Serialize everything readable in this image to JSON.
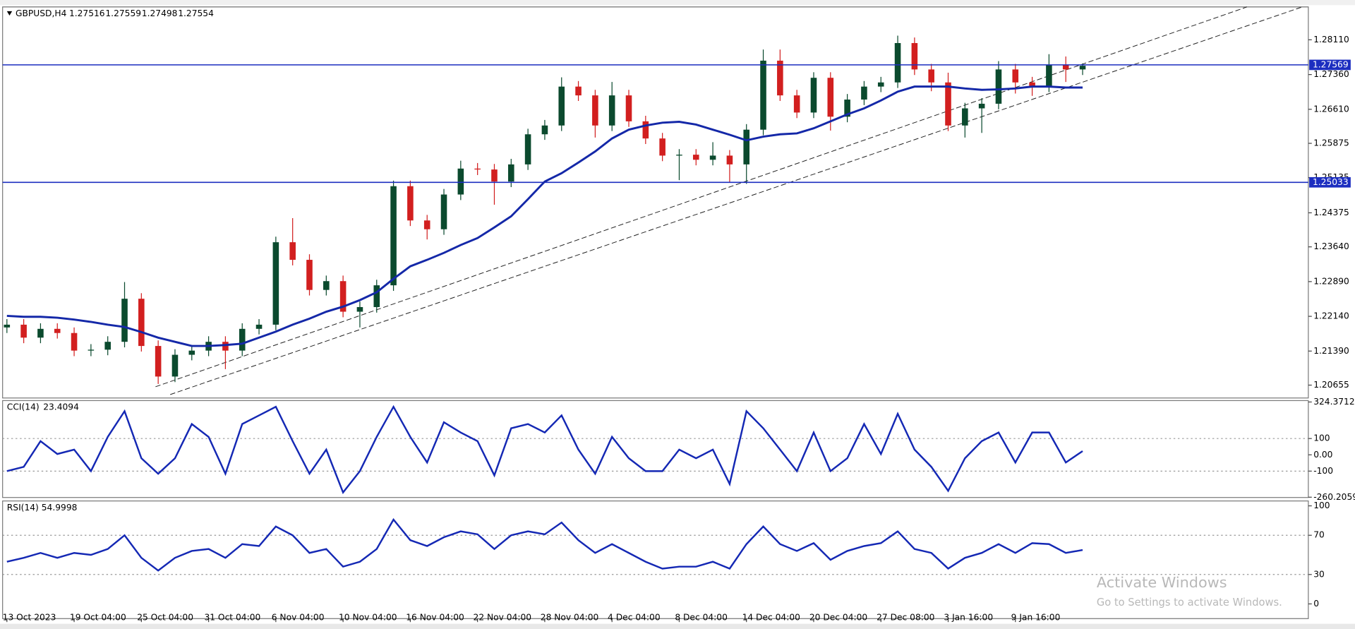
{
  "chart_data": [
    {
      "type": "candlestick",
      "title": "GBPUSD,H4",
      "quote": [
        1.27516,
        1.27559,
        1.27498,
        1.27554
      ],
      "categories": [
        "13 Oct 2023",
        null,
        null,
        null,
        "19 Oct 04:00",
        null,
        null,
        null,
        "25 Oct 04:00",
        null,
        null,
        null,
        "31 Oct 04:00",
        null,
        null,
        null,
        "6 Nov 04:00",
        null,
        null,
        null,
        "10 Nov 04:00",
        null,
        null,
        null,
        "16 Nov 04:00",
        null,
        null,
        null,
        "22 Nov 04:00",
        null,
        null,
        null,
        "28 Nov 04:00",
        null,
        null,
        null,
        "4 Dec 04:00",
        null,
        null,
        null,
        "8 Dec 04:00",
        null,
        null,
        null,
        "14 Dec 04:00",
        null,
        null,
        null,
        "20 Dec 04:00",
        null,
        null,
        null,
        "27 Dec 08:00",
        null,
        null,
        null,
        "3 Jan 16:00",
        null,
        null,
        null,
        "9 Jan 16:00",
        null,
        null,
        null,
        null
      ],
      "open": [
        1.219,
        1.2196,
        1.2168,
        1.2187,
        1.2178,
        1.214,
        1.2142,
        1.2159,
        1.2252,
        1.215,
        1.2084,
        1.2131,
        1.214,
        1.2159,
        1.214,
        1.2187,
        1.2196,
        1.2374,
        1.2336,
        1.2271,
        1.229,
        1.2224,
        1.2234,
        1.2281,
        1.2495,
        1.2421,
        1.2402,
        1.2477,
        1.2533,
        1.2531,
        1.2505,
        1.2542,
        1.2607,
        1.2626,
        1.271,
        1.2691,
        1.2626,
        1.2691,
        1.2635,
        1.2598,
        1.2561,
        1.2563,
        1.2552,
        1.2561,
        1.2542,
        1.2617,
        1.2766,
        1.2691,
        1.2654,
        1.2729,
        1.2645,
        1.2682,
        1.271,
        1.2719,
        1.2804,
        1.2747,
        1.2719,
        1.2626,
        1.2663,
        1.2673,
        1.2747,
        1.2719,
        1.271,
        1.2757,
        1.2747
      ],
      "high": [
        1.2208,
        1.2208,
        1.2199,
        1.2199,
        1.219,
        1.2154,
        1.2171,
        1.2288,
        1.2264,
        1.2162,
        1.2143,
        1.2152,
        1.2171,
        1.2171,
        1.2199,
        1.2208,
        1.2386,
        1.2426,
        1.2348,
        1.2302,
        1.2302,
        1.2246,
        1.2293,
        1.2507,
        1.2507,
        1.2433,
        1.2489,
        1.255,
        1.2545,
        1.2543,
        1.2554,
        1.2619,
        1.2638,
        1.273,
        1.2722,
        1.2703,
        1.272,
        1.2703,
        1.2647,
        1.261,
        1.2575,
        1.2575,
        1.259,
        1.2573,
        1.2629,
        1.279,
        1.279,
        1.2703,
        1.2741,
        1.2741,
        1.2694,
        1.2722,
        1.2731,
        1.282,
        1.2816,
        1.2759,
        1.274,
        1.2675,
        1.2685,
        1.2765,
        1.2759,
        1.2731,
        1.278,
        1.2775,
        1.276
      ],
      "low": [
        1.2178,
        1.2156,
        1.2156,
        1.2166,
        1.2128,
        1.2128,
        1.213,
        1.2147,
        1.2138,
        1.2068,
        1.2072,
        1.2119,
        1.2128,
        1.21,
        1.2128,
        1.2175,
        1.2184,
        1.2324,
        1.2259,
        1.2259,
        1.2212,
        1.219,
        1.2222,
        1.2269,
        1.2409,
        1.238,
        1.239,
        1.2465,
        1.2519,
        1.2455,
        1.2493,
        1.253,
        1.2595,
        1.2614,
        1.2679,
        1.26,
        1.2614,
        1.2623,
        1.2586,
        1.2549,
        1.2508,
        1.254,
        1.254,
        1.2503,
        1.25,
        1.2605,
        1.2679,
        1.2642,
        1.2642,
        1.2615,
        1.2633,
        1.267,
        1.2698,
        1.2707,
        1.2735,
        1.27,
        1.2614,
        1.26,
        1.261,
        1.2661,
        1.2695,
        1.269,
        1.2698,
        1.272,
        1.2735
      ],
      "close": [
        1.2196,
        1.2168,
        1.2187,
        1.2178,
        1.214,
        1.2142,
        1.2159,
        1.2252,
        1.215,
        1.2084,
        1.2131,
        1.214,
        1.2159,
        1.214,
        1.2187,
        1.2196,
        1.2374,
        1.2336,
        1.2271,
        1.229,
        1.2224,
        1.2234,
        1.2281,
        1.2495,
        1.2421,
        1.2402,
        1.2477,
        1.2533,
        1.2531,
        1.2505,
        1.2542,
        1.2607,
        1.2626,
        1.271,
        1.2691,
        1.2626,
        1.2691,
        1.2635,
        1.2598,
        1.2561,
        1.2563,
        1.2552,
        1.2561,
        1.2542,
        1.2617,
        1.2766,
        1.2691,
        1.2654,
        1.2729,
        1.2645,
        1.2682,
        1.271,
        1.2719,
        1.2804,
        1.2747,
        1.2719,
        1.2626,
        1.2663,
        1.2673,
        1.2747,
        1.2719,
        1.271,
        1.2757,
        1.2747,
        1.2755
      ],
      "up_color": "#0b4a2e",
      "down_color": "#d21f1f",
      "ma": [
        1.2215,
        1.2213,
        1.2213,
        1.2211,
        1.2207,
        1.2202,
        1.2196,
        1.2191,
        1.218,
        1.2168,
        1.2159,
        1.215,
        1.215,
        1.2152,
        1.2155,
        1.2168,
        1.2181,
        1.2196,
        1.2209,
        1.2224,
        1.2235,
        1.2249,
        1.2266,
        1.2295,
        1.2322,
        1.2336,
        1.2351,
        1.2368,
        1.2383,
        1.2406,
        1.243,
        1.2467,
        1.2505,
        1.2523,
        1.2546,
        1.257,
        1.2598,
        1.2617,
        1.2626,
        1.2632,
        1.2634,
        1.2628,
        1.2617,
        1.2606,
        1.2594,
        1.2602,
        1.2607,
        1.2609,
        1.262,
        1.2635,
        1.265,
        1.2663,
        1.268,
        1.2699,
        1.271,
        1.271,
        1.271,
        1.2706,
        1.2703,
        1.2704,
        1.2706,
        1.271,
        1.271,
        1.2708,
        1.2708
      ],
      "ma_color": "#1428a8",
      "levels": [
        1.27569,
        1.25033
      ],
      "level_color": "#1c2ec0",
      "ylim": [
        1.20377,
        1.2882
      ],
      "yticks": [
        {
          "value": 1.2811,
          "label": "1.28110"
        },
        {
          "value": 1.2736,
          "label": "1.27360"
        },
        {
          "value": 1.2661,
          "label": "1.26610"
        },
        1.25875,
        1.25135,
        1.24375,
        {
          "value": 1.2364,
          "label": "1.23640"
        },
        {
          "value": 1.2289,
          "label": "1.22890"
        },
        {
          "value": 1.2214,
          "label": "1.22140"
        },
        {
          "value": 1.2139,
          "label": "1.21390"
        },
        1.20655
      ]
    },
    {
      "type": "line",
      "title": "CCI(14)",
      "last": 23.4094,
      "values": [
        -100,
        -74,
        84,
        5,
        32,
        -100,
        110,
        268,
        -21,
        -116,
        -21,
        189,
        110,
        -116,
        189,
        242,
        295,
        84,
        -116,
        32,
        -231,
        -100,
        110,
        295,
        110,
        -47,
        200,
        137,
        84,
        -126,
        163,
        189,
        137,
        242,
        32,
        -116,
        110,
        -21,
        -100,
        -100,
        32,
        -21,
        32,
        -179,
        268,
        163,
        32,
        -100,
        137,
        -100,
        -21,
        189,
        5,
        252,
        32,
        -74,
        -221,
        -21,
        84,
        137,
        -47,
        137,
        137,
        -47,
        23
      ],
      "color": "#1428b4",
      "ylim": [
        -262,
        333
      ],
      "yticks": [
        324.3712,
        100,
        {
          "value": 0,
          "label": "0.00"
        },
        -100,
        -260.2059
      ],
      "guides": [
        100,
        -100
      ]
    },
    {
      "type": "line",
      "title": "RSI(14)",
      "last": 54.9998,
      "values": [
        43,
        47,
        52,
        47,
        52,
        50,
        56,
        70,
        47,
        34,
        47,
        54,
        56,
        47,
        61,
        59,
        79,
        70,
        52,
        56,
        38,
        43,
        56,
        86,
        65,
        59,
        68,
        74,
        71,
        56,
        70,
        74,
        71,
        83,
        65,
        52,
        61,
        52,
        43,
        36,
        38,
        38,
        43,
        36,
        61,
        79,
        61,
        54,
        62,
        45,
        54,
        59,
        62,
        74,
        56,
        52,
        36,
        47,
        52,
        61,
        52,
        62,
        61,
        52,
        55
      ],
      "color": "#1428b4",
      "ylim": [
        -15,
        105
      ],
      "yticks": [
        100,
        70,
        30,
        0
      ],
      "guides": [
        70,
        30
      ]
    }
  ],
  "watermark": {
    "title": "Activate Windows",
    "subtitle": "Go to Settings to activate Windows."
  }
}
